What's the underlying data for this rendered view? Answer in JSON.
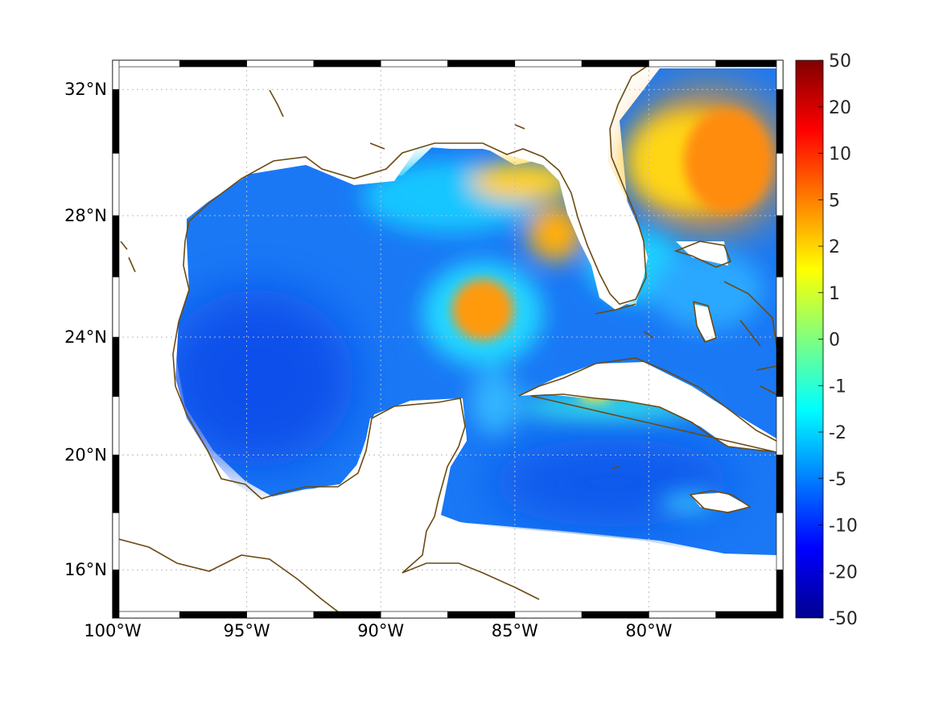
{
  "map": {
    "projection": "mercator",
    "lon_range": [
      -100,
      -75
    ],
    "lat_range": [
      14.3,
      32.9
    ],
    "grid": true,
    "frame": "alternating black/white border",
    "lon_ticks": [
      {
        "value": -100,
        "label": "100°W"
      },
      {
        "value": -95,
        "label": "95°W"
      },
      {
        "value": -90,
        "label": "90°W"
      },
      {
        "value": -85,
        "label": "85°W"
      },
      {
        "value": -80,
        "label": "80°W"
      }
    ],
    "lat_ticks": [
      {
        "value": 32,
        "label": "32°N"
      },
      {
        "value": 28,
        "label": "28°N"
      },
      {
        "value": 24,
        "label": "24°N"
      },
      {
        "value": 20,
        "label": "20°N"
      },
      {
        "value": 16,
        "label": "16°N"
      }
    ],
    "colors": {
      "coastline": "#6b4a12",
      "land": "#ffffff",
      "grid": "#bdbdbd"
    }
  },
  "colorbar": {
    "colormap": "jet",
    "orientation": "vertical",
    "position": "right",
    "range": [
      -50,
      50
    ],
    "ticks": [
      "50",
      "20",
      "10",
      "5",
      "2",
      "1",
      "0",
      "-1",
      "-2",
      "-5",
      "-10",
      "-20",
      "-50"
    ]
  },
  "field_features": [
    {
      "name": "southeast us and western atlantic high",
      "level": 5
    },
    {
      "name": "loop current eddy high",
      "level": 4
    },
    {
      "name": "northeastern gulf high",
      "level": 3
    },
    {
      "name": "cuba south coast band",
      "level": 2
    },
    {
      "name": "western gulf low",
      "level": -7
    },
    {
      "name": "caribbean low",
      "level": -6
    }
  ]
}
